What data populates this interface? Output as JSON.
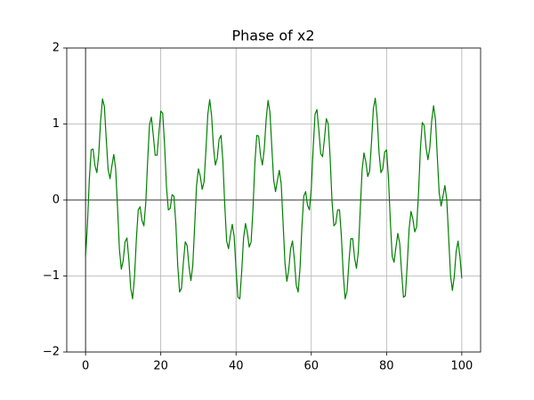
{
  "chart_data": {
    "type": "line",
    "title": "Phase of x2",
    "color": "#008000",
    "grid": true,
    "zero_lines": true,
    "xlim": [
      -5,
      105
    ],
    "ylim": [
      -2,
      2
    ],
    "xticks": [
      0,
      20,
      40,
      60,
      80,
      100
    ],
    "yticks": [
      {
        "value": -2,
        "label": "−2"
      },
      {
        "value": -1,
        "label": "−1"
      },
      0,
      1,
      2
    ],
    "x": [
      0,
      0.5,
      1,
      1.5,
      2,
      2.5,
      3,
      3.5,
      4,
      4.5,
      5,
      5.5,
      6,
      6.5,
      7,
      7.5,
      8,
      8.5,
      9,
      9.5,
      10,
      10.5,
      11,
      11.5,
      12,
      12.5,
      13,
      13.5,
      14,
      14.5,
      15,
      15.5,
      16,
      16.5,
      17,
      17.5,
      18,
      18.5,
      19,
      19.5,
      20,
      20.5,
      21,
      21.5,
      22,
      22.5,
      23,
      23.5,
      24,
      24.5,
      25,
      25.5,
      26,
      26.5,
      27,
      27.5,
      28,
      28.5,
      29,
      29.5,
      30,
      30.5,
      31,
      31.5,
      32,
      32.5,
      33,
      33.5,
      34,
      34.5,
      35,
      35.5,
      36,
      36.5,
      37,
      37.5,
      38,
      38.5,
      39,
      39.5,
      40,
      40.5,
      41,
      41.5,
      42,
      42.5,
      43,
      43.5,
      44,
      44.5,
      45,
      45.5,
      46,
      46.5,
      47,
      47.5,
      48,
      48.5,
      49,
      49.5,
      50,
      50.5,
      51,
      51.5,
      52,
      52.5,
      53,
      53.5,
      54,
      54.5,
      55,
      55.5,
      56,
      56.5,
      57,
      57.5,
      58,
      58.5,
      59,
      59.5,
      60,
      60.5,
      61,
      61.5,
      62,
      62.5,
      63,
      63.5,
      64,
      64.5,
      65,
      65.5,
      66,
      66.5,
      67,
      67.5,
      68,
      68.5,
      69,
      69.5,
      70,
      70.5,
      71,
      71.5,
      72,
      72.5,
      73,
      73.5,
      74,
      74.5,
      75,
      75.5,
      76,
      76.5,
      77,
      77.5,
      78,
      78.5,
      79,
      79.5,
      80,
      80.5,
      81,
      81.5,
      82,
      82.5,
      83,
      83.5,
      84,
      84.5,
      85,
      85.5,
      86,
      86.5,
      87,
      87.5,
      88,
      88.5,
      89,
      89.5,
      90,
      90.5,
      91,
      91.5,
      92,
      92.5,
      93,
      93.5,
      94,
      94.5,
      95,
      95.5,
      96,
      96.5,
      97,
      97.5,
      98,
      98.5,
      99,
      99.5,
      100
    ],
    "values": [
      -0.75,
      -0.32,
      0.27,
      0.66,
      0.67,
      0.45,
      0.36,
      0.6,
      1.04,
      1.33,
      1.23,
      0.8,
      0.4,
      0.28,
      0.45,
      0.6,
      0.41,
      -0.1,
      -0.65,
      -0.91,
      -0.8,
      -0.55,
      -0.5,
      -0.78,
      -1.16,
      -1.3,
      -1.02,
      -0.52,
      -0.13,
      -0.09,
      -0.27,
      -0.34,
      -0.04,
      0.51,
      0.99,
      1.09,
      0.85,
      0.59,
      0.59,
      0.88,
      1.17,
      1.14,
      0.73,
      0.18,
      -0.13,
      -0.11,
      0.07,
      0.05,
      -0.32,
      -0.86,
      -1.21,
      -1.16,
      -0.82,
      -0.55,
      -0.6,
      -0.88,
      -1.06,
      -0.86,
      -0.34,
      0.19,
      0.41,
      0.31,
      0.14,
      0.24,
      0.66,
      1.13,
      1.32,
      1.11,
      0.7,
      0.46,
      0.55,
      0.8,
      0.85,
      0.51,
      -0.07,
      -0.54,
      -0.64,
      -0.46,
      -0.32,
      -0.48,
      -0.91,
      -1.28,
      -1.3,
      -0.94,
      -0.5,
      -0.31,
      -0.43,
      -0.62,
      -0.55,
      -0.12,
      0.48,
      0.85,
      0.84,
      0.59,
      0.46,
      0.67,
      1.06,
      1.31,
      1.16,
      0.7,
      0.26,
      0.11,
      0.26,
      0.39,
      0.21,
      -0.3,
      -0.83,
      -1.07,
      -0.92,
      -0.64,
      -0.54,
      -0.78,
      -1.12,
      -1.21,
      -0.9,
      -0.36,
      0.05,
      0.11,
      -0.07,
      -0.13,
      0.15,
      0.68,
      1.13,
      1.19,
      0.92,
      0.61,
      0.57,
      0.81,
      1.07,
      1.0,
      0.56,
      -0.01,
      -0.34,
      -0.31,
      -0.13,
      -0.13,
      -0.48,
      -0.98,
      -1.3,
      -1.2,
      -0.82,
      -0.51,
      -0.51,
      -0.76,
      -0.9,
      -0.68,
      -0.14,
      0.39,
      0.62,
      0.5,
      0.31,
      0.38,
      0.76,
      1.2,
      1.34,
      1.09,
      0.63,
      0.36,
      0.41,
      0.63,
      0.66,
      0.3,
      -0.27,
      -0.74,
      -0.82,
      -0.62,
      -0.44,
      -0.57,
      -0.95,
      -1.28,
      -1.26,
      -0.85,
      -0.38,
      -0.15,
      -0.25,
      -0.42,
      -0.35,
      0.09,
      0.67,
      1.02,
      0.98,
      0.69,
      0.53,
      0.69,
      1.04,
      1.24,
      1.06,
      0.56,
      0.09,
      -0.08,
      0.05,
      0.19,
      0.01,
      -0.48,
      -0.99,
      -1.19,
      -1.01,
      -0.68,
      -0.54,
      -0.74,
      -1.03
    ]
  }
}
